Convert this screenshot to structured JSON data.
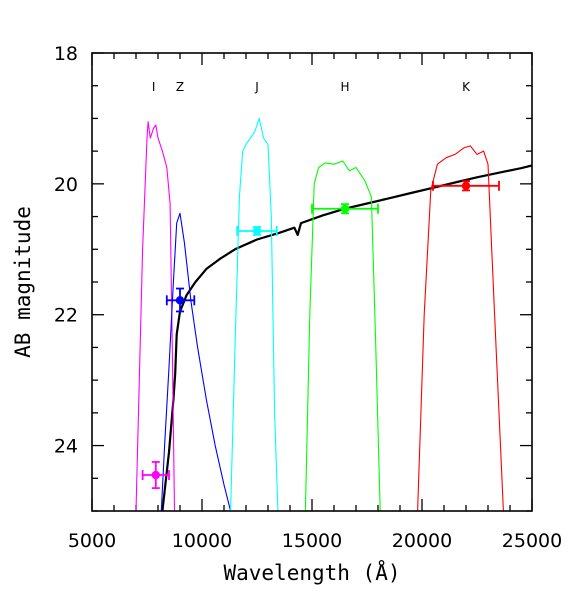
{
  "chart_data": {
    "type": "line",
    "xlabel": "Wavelength (Å)",
    "ylabel": "AB magnitude",
    "xlim": [
      5000,
      25000
    ],
    "ylim": [
      25,
      18
    ],
    "x_major_ticks": [
      5000,
      10000,
      15000,
      20000,
      25000
    ],
    "x_tick_labels": [
      "5000",
      "10000",
      "15000",
      "20000",
      "25000"
    ],
    "y_major_ticks": [
      18,
      20,
      22,
      24
    ],
    "y_tick_labels": [
      "18",
      "20",
      "22",
      "24"
    ],
    "band_labels": [
      {
        "text": "I",
        "x": 7800
      },
      {
        "text": "Z",
        "x": 9000
      },
      {
        "text": "J",
        "x": 12500
      },
      {
        "text": "H",
        "x": 16500
      },
      {
        "text": "K",
        "x": 22000
      }
    ],
    "series": [
      {
        "role": "model_spectrum",
        "color": "#000000",
        "x": [
          8200,
          8500,
          8700,
          8780,
          8850,
          9000,
          9300,
          9700,
          10200,
          10800,
          11500,
          12500,
          13500,
          14200,
          14350,
          14500,
          15500,
          16500,
          17500,
          18500,
          19500,
          20500,
          21500,
          22500,
          23500,
          24500,
          25000
        ],
        "y": [
          25.0,
          24.1,
          23.3,
          22.9,
          22.3,
          21.95,
          21.7,
          21.5,
          21.3,
          21.15,
          21.0,
          20.85,
          20.75,
          20.67,
          20.78,
          20.6,
          20.48,
          20.38,
          20.3,
          20.22,
          20.14,
          20.06,
          19.98,
          19.9,
          19.83,
          19.76,
          19.72
        ]
      },
      {
        "role": "filter_I",
        "color": "#ff00ff",
        "x": [
          7000,
          7300,
          7500,
          7550,
          7650,
          7800,
          7900,
          8000,
          8200,
          8400,
          8550,
          8650,
          8750
        ],
        "y": [
          25.0,
          21.0,
          19.3,
          19.05,
          19.3,
          19.15,
          19.1,
          19.3,
          19.5,
          19.75,
          20.3,
          22.5,
          25.0
        ]
      },
      {
        "role": "filter_Z",
        "color": "#0000ff",
        "x": [
          8150,
          8300,
          8500,
          8700,
          8850,
          9000,
          9200,
          9500,
          9800,
          10200,
          10600,
          11000,
          11300
        ],
        "y": [
          25.0,
          24.0,
          22.8,
          21.5,
          20.6,
          20.45,
          20.9,
          21.8,
          22.5,
          23.3,
          24.0,
          24.6,
          25.0
        ]
      },
      {
        "role": "filter_J",
        "color": "#00ffff",
        "x": [
          11300,
          11500,
          11700,
          11850,
          12000,
          12200,
          12400,
          12600,
          12800,
          13000,
          13150,
          13300,
          13450
        ],
        "y": [
          25.0,
          22.5,
          20.2,
          19.5,
          19.4,
          19.3,
          19.2,
          19.0,
          19.3,
          19.4,
          20.5,
          23.5,
          25.0
        ]
      },
      {
        "role": "filter_H",
        "color": "#00ff00",
        "x": [
          14700,
          14900,
          15100,
          15300,
          15600,
          16000,
          16400,
          16700,
          17000,
          17400,
          17700,
          17900,
          18100
        ],
        "y": [
          25.0,
          22.0,
          20.0,
          19.75,
          19.68,
          19.7,
          19.65,
          19.8,
          19.75,
          19.95,
          20.2,
          22.5,
          25.0
        ]
      },
      {
        "role": "filter_K",
        "color": "#ff0000",
        "x": [
          19800,
          20100,
          20400,
          20700,
          21100,
          21500,
          21900,
          22200,
          22500,
          22800,
          23000,
          23300,
          23700
        ],
        "y": [
          25.0,
          22.0,
          20.1,
          19.7,
          19.6,
          19.55,
          19.45,
          19.42,
          19.55,
          19.5,
          19.7,
          22.0,
          25.0
        ]
      }
    ],
    "points": [
      {
        "band": "I",
        "color": "#ff00ff",
        "x": 7900,
        "y": 24.45,
        "x_lo": 7300,
        "x_hi": 8500,
        "y_lo": 24.65,
        "y_hi": 24.25
      },
      {
        "band": "Z",
        "color": "#0000ff",
        "x": 9000,
        "y": 21.78,
        "x_lo": 8400,
        "x_hi": 9650,
        "y_lo": 21.95,
        "y_hi": 21.6
      },
      {
        "band": "J",
        "color": "#00ffff",
        "x": 12500,
        "y": 20.72,
        "x_lo": 11600,
        "x_hi": 13400,
        "y_lo": 20.78,
        "y_hi": 20.66
      },
      {
        "band": "H",
        "color": "#00ff00",
        "x": 16500,
        "y": 20.38,
        "x_lo": 15000,
        "x_hi": 18000,
        "y_lo": 20.45,
        "y_hi": 20.31
      },
      {
        "band": "K",
        "color": "#ff0000",
        "x": 22000,
        "y": 20.03,
        "x_lo": 20500,
        "x_hi": 23500,
        "y_lo": 20.1,
        "y_hi": 19.96
      }
    ]
  }
}
